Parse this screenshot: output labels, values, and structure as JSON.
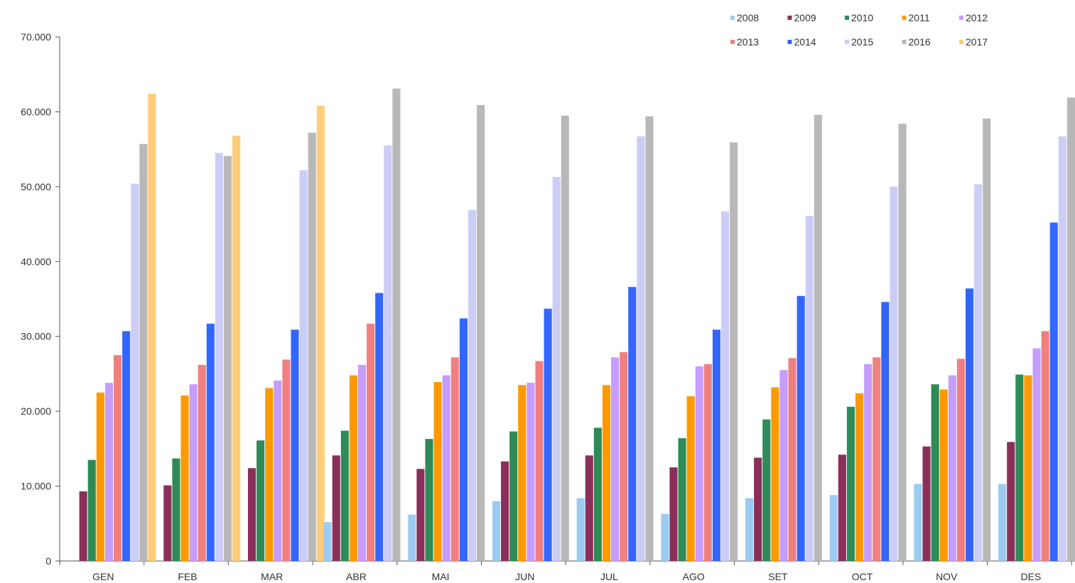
{
  "chart_data": {
    "type": "bar",
    "categories": [
      "GEN",
      "FEB",
      "MAR",
      "ABR",
      "MAI",
      "JUN",
      "JUL",
      "AGO",
      "SET",
      "OCT",
      "NOV",
      "DES"
    ],
    "ylim": [
      0,
      70000
    ],
    "yticks": [
      0,
      10000,
      20000,
      30000,
      40000,
      50000,
      60000,
      70000
    ],
    "ytick_labels": [
      "0",
      "10.000",
      "20.000",
      "30.000",
      "40.000",
      "50.000",
      "60.000",
      "70.000"
    ],
    "legend_position": "top-right",
    "grid": false,
    "series": [
      {
        "name": "2008",
        "color": "#9ccbf2",
        "values": [
          0,
          0,
          0,
          5200,
          6200,
          8000,
          8400,
          6300,
          8400,
          8800,
          10300,
          10300
        ]
      },
      {
        "name": "2009",
        "color": "#8b2f5a",
        "values": [
          9300,
          10100,
          12400,
          14100,
          12300,
          13300,
          14100,
          12500,
          13800,
          14200,
          15300,
          15900
        ]
      },
      {
        "name": "2010",
        "color": "#2e8b57",
        "values": [
          13500,
          13700,
          16100,
          17400,
          16300,
          17300,
          17800,
          16400,
          18900,
          20600,
          23600,
          24900
        ]
      },
      {
        "name": "2011",
        "color": "#ff9900",
        "values": [
          22500,
          22100,
          23100,
          24800,
          23900,
          23500,
          23500,
          22000,
          23200,
          22400,
          22900,
          24800
        ]
      },
      {
        "name": "2012",
        "color": "#c69cff",
        "values": [
          23800,
          23600,
          24100,
          26200,
          24800,
          23800,
          27200,
          26000,
          25500,
          26300,
          24800,
          28400
        ]
      },
      {
        "name": "2013",
        "color": "#f08080",
        "values": [
          27500,
          26200,
          26900,
          31700,
          27200,
          26700,
          27900,
          26300,
          27100,
          27200,
          27000,
          30700
        ]
      },
      {
        "name": "2014",
        "color": "#3366ff",
        "values": [
          30700,
          31700,
          30900,
          35800,
          32400,
          33700,
          36600,
          30900,
          35400,
          34600,
          36400,
          45200
        ]
      },
      {
        "name": "2015",
        "color": "#cccdf7",
        "values": [
          50400,
          54500,
          52200,
          55500,
          46900,
          51300,
          56700,
          46700,
          46100,
          50000,
          50300,
          56700
        ]
      },
      {
        "name": "2016",
        "color": "#b8b8b8",
        "values": [
          55700,
          54100,
          57200,
          63100,
          60900,
          59500,
          59400,
          55900,
          59600,
          58400,
          59100,
          61900
        ]
      },
      {
        "name": "2017",
        "color": "#ffcc77",
        "values": [
          62400,
          56800,
          60800,
          null,
          null,
          null,
          null,
          null,
          null,
          null,
          null,
          null
        ]
      }
    ]
  }
}
